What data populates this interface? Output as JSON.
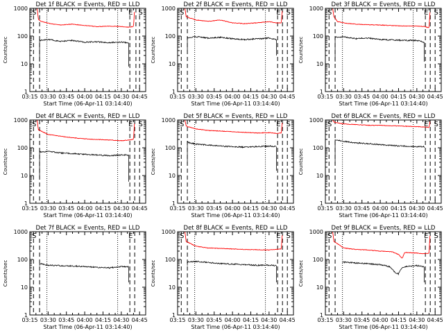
{
  "chart_data": {
    "type": "line",
    "scale": "log",
    "ylim": [
      1,
      1000
    ],
    "xlim_minutes": [
      "03:15",
      "04:50"
    ],
    "xticks": [
      "03:15",
      "03:30",
      "03:45",
      "04:00",
      "04:15",
      "04:30",
      "04:45"
    ],
    "yticks": [
      "1",
      "10",
      "100",
      "1000"
    ],
    "xlabel": "Start Time (06-Apr-11 03:14:40)",
    "ylabel": "Counts/sec",
    "marker_labels": {
      "start": "S",
      "end": "E"
    },
    "legend_text": "BLACK = Events, RED = LLD",
    "colors": {
      "events": "#000000",
      "lld": "#ff0000"
    },
    "panels": [
      {
        "title": "Det 1f BLACK = Events, RED = LLD",
        "dashed": [
          "03:18",
          "03:23",
          "04:37",
          "04:42",
          "04:45"
        ],
        "dotted": [
          "03:29",
          "04:27"
        ],
        "S_at": "03:15",
        "E_at": "04:37",
        "E2_at": "04:44",
        "lld": {
          "start": "03:21",
          "end": "04:42",
          "points": [
            [
              "03:21",
              1000
            ],
            [
              "03:22",
              400
            ],
            [
              "03:24",
              340
            ],
            [
              "03:30",
              290
            ],
            [
              "03:40",
              250
            ],
            [
              "03:50",
              270
            ],
            [
              "04:00",
              240
            ],
            [
              "04:10",
              220
            ],
            [
              "04:20",
              230
            ],
            [
              "04:30",
              220
            ],
            [
              "04:36",
              210
            ],
            [
              "04:40",
              220
            ],
            [
              "04:41",
              1000
            ]
          ]
        },
        "events": {
          "start": "03:23",
          "end": "04:37",
          "drop_start": 12,
          "drop_end": 8,
          "points": [
            [
              "03:23",
              70
            ],
            [
              "03:30",
              75
            ],
            [
              "03:40",
              65
            ],
            [
              "03:50",
              70
            ],
            [
              "04:00",
              60
            ],
            [
              "04:10",
              62
            ],
            [
              "04:20",
              58
            ],
            [
              "04:30",
              60
            ],
            [
              "04:36",
              58
            ]
          ]
        }
      },
      {
        "title": "Det 2f BLACK = Events, RED = LLD",
        "dashed": [
          "03:18",
          "03:23",
          "04:37",
          "04:41",
          "04:45"
        ],
        "dotted": [
          "03:29",
          "04:27"
        ],
        "S_at": "03:15",
        "E_at": "04:37",
        "E2_at": "04:44",
        "lld": {
          "start": "03:21",
          "end": "04:42",
          "points": [
            [
              "03:21",
              1000
            ],
            [
              "03:22",
              500
            ],
            [
              "03:30",
              380
            ],
            [
              "03:40",
              340
            ],
            [
              "03:50",
              380
            ],
            [
              "04:00",
              300
            ],
            [
              "04:10",
              280
            ],
            [
              "04:20",
              300
            ],
            [
              "04:30",
              330
            ],
            [
              "04:36",
              300
            ],
            [
              "04:40",
              300
            ],
            [
              "04:41",
              1000
            ]
          ]
        },
        "events": {
          "start": "03:23",
          "end": "04:37",
          "drop_start": 30,
          "drop_end": 20,
          "points": [
            [
              "03:23",
              85
            ],
            [
              "03:30",
              95
            ],
            [
              "03:40",
              85
            ],
            [
              "03:50",
              90
            ],
            [
              "04:00",
              80
            ],
            [
              "04:10",
              75
            ],
            [
              "04:20",
              80
            ],
            [
              "04:30",
              85
            ],
            [
              "04:36",
              75
            ]
          ]
        }
      },
      {
        "title": "Det 3f BLACK = Events, RED = LLD",
        "dashed": [
          "03:18",
          "03:23",
          "04:37",
          "04:41",
          "04:45"
        ],
        "dotted": [
          "03:29",
          "04:27"
        ],
        "S_at": "03:15",
        "E_at": "04:37",
        "E2_at": "04:44",
        "lld": {
          "start": "03:21",
          "end": "04:42",
          "points": [
            [
              "03:21",
              1000
            ],
            [
              "03:22",
              500
            ],
            [
              "03:25",
              330
            ],
            [
              "03:35",
              280
            ],
            [
              "03:45",
              260
            ],
            [
              "04:00",
              250
            ],
            [
              "04:10",
              240
            ],
            [
              "04:20",
              230
            ],
            [
              "04:30",
              230
            ],
            [
              "04:36",
              220
            ],
            [
              "04:40",
              200
            ],
            [
              "04:41",
              1000
            ]
          ]
        },
        "events": {
          "start": "03:23",
          "end": "04:37",
          "drop_start": 12,
          "drop_end": 12,
          "points": [
            [
              "03:23",
              90
            ],
            [
              "03:30",
              95
            ],
            [
              "03:40",
              80
            ],
            [
              "03:50",
              85
            ],
            [
              "04:00",
              75
            ],
            [
              "04:10",
              72
            ],
            [
              "04:20",
              70
            ],
            [
              "04:30",
              70
            ],
            [
              "04:36",
              60
            ]
          ]
        }
      },
      {
        "title": "Det 4f BLACK = Events, RED = LLD",
        "dashed": [
          "03:18",
          "03:23",
          "04:37",
          "04:41",
          "04:45"
        ],
        "dotted": [
          "03:29",
          "04:27"
        ],
        "S_at": "03:15",
        "E_at": "04:37",
        "E2_at": "04:44",
        "lld": {
          "start": "03:21",
          "end": "04:42",
          "points": [
            [
              "03:21",
              1000
            ],
            [
              "03:22",
              450
            ],
            [
              "03:30",
              300
            ],
            [
              "03:40",
              260
            ],
            [
              "03:50",
              230
            ],
            [
              "04:00",
              210
            ],
            [
              "04:10",
              200
            ],
            [
              "04:20",
              190
            ],
            [
              "04:30",
              180
            ],
            [
              "04:36",
              190
            ],
            [
              "04:40",
              200
            ],
            [
              "04:41",
              1000
            ]
          ]
        },
        "events": {
          "start": "03:23",
          "end": "04:37",
          "drop_start": 8,
          "drop_end": 6,
          "points": [
            [
              "03:23",
              70
            ],
            [
              "03:30",
              75
            ],
            [
              "03:40",
              65
            ],
            [
              "03:50",
              62
            ],
            [
              "04:00",
              58
            ],
            [
              "04:10",
              55
            ],
            [
              "04:20",
              52
            ],
            [
              "04:30",
              55
            ],
            [
              "04:36",
              55
            ]
          ]
        }
      },
      {
        "title": "Det 5f BLACK = Events, RED = LLD",
        "dashed": [
          "03:18",
          "03:23",
          "04:37",
          "04:41",
          "04:45"
        ],
        "dotted": [
          "03:29",
          "04:27"
        ],
        "S_at": "03:15",
        "E_at": "04:37",
        "E2_at": "04:44",
        "lld": {
          "start": "03:21",
          "end": "04:42",
          "points": [
            [
              "03:21",
              1000
            ],
            [
              "03:22",
              600
            ],
            [
              "03:30",
              480
            ],
            [
              "03:40",
              420
            ],
            [
              "03:50",
              400
            ],
            [
              "04:00",
              380
            ],
            [
              "04:10",
              360
            ],
            [
              "04:20",
              340
            ],
            [
              "04:30",
              350
            ],
            [
              "04:36",
              330
            ],
            [
              "04:40",
              340
            ],
            [
              "04:41",
              1000
            ]
          ]
        },
        "events": {
          "start": "03:23",
          "end": "04:37",
          "drop_start": 25,
          "drop_end": 15,
          "points": [
            [
              "03:23",
              160
            ],
            [
              "03:25",
              150
            ],
            [
              "03:30",
              135
            ],
            [
              "03:40",
              125
            ],
            [
              "03:50",
              115
            ],
            [
              "04:00",
              110
            ],
            [
              "04:10",
              105
            ],
            [
              "04:20",
              110
            ],
            [
              "04:30",
              115
            ],
            [
              "04:36",
              110
            ]
          ]
        }
      },
      {
        "title": "Det 6f BLACK = Events, RED = LLD",
        "dashed": [
          "03:18",
          "03:23",
          "04:37",
          "04:41",
          "04:45"
        ],
        "dotted": [
          "03:29",
          "04:27"
        ],
        "S_at": "03:15",
        "E_at": "04:37",
        "E2_at": "04:44",
        "lld": {
          "start": "03:21",
          "end": "04:42",
          "points": [
            [
              "03:21",
              1000
            ],
            [
              "03:22",
              850
            ],
            [
              "03:30",
              720
            ],
            [
              "03:40",
              680
            ],
            [
              "03:50",
              650
            ],
            [
              "04:00",
              640
            ],
            [
              "04:10",
              620
            ],
            [
              "04:20",
              600
            ],
            [
              "04:30",
              580
            ],
            [
              "04:36",
              560
            ],
            [
              "04:40",
              540
            ],
            [
              "04:41",
              1000
            ]
          ]
        },
        "events": {
          "start": "03:23",
          "end": "04:37",
          "drop_start": 25,
          "drop_end": 100,
          "points": [
            [
              "03:23",
              200
            ],
            [
              "03:25",
              185
            ],
            [
              "03:30",
              170
            ],
            [
              "03:40",
              150
            ],
            [
              "03:50",
              140
            ],
            [
              "04:00",
              130
            ],
            [
              "04:10",
              120
            ],
            [
              "04:20",
              115
            ],
            [
              "04:30",
              110
            ],
            [
              "04:36",
              110
            ]
          ]
        }
      },
      {
        "title": "Det 7f BLACK = Events, RED = LLD",
        "dashed": [
          "03:18",
          "03:23",
          "04:37",
          "04:41"
        ],
        "dotted": [
          "03:29",
          "04:27"
        ],
        "S_at": "03:15",
        "E_at": "04:37",
        "E2_at": "",
        "lld": null,
        "events": {
          "start": "03:23",
          "end": "04:37",
          "drop_start": 60,
          "drop_end": 15,
          "points": [
            [
              "03:23",
              70
            ],
            [
              "03:30",
              62
            ],
            [
              "03:40",
              60
            ],
            [
              "03:50",
              58
            ],
            [
              "04:00",
              56
            ],
            [
              "04:10",
              52
            ],
            [
              "04:20",
              50
            ],
            [
              "04:30",
              55
            ],
            [
              "04:36",
              55
            ]
          ]
        }
      },
      {
        "title": "Det 8f BLACK = Events, RED = LLD",
        "dashed": [
          "03:18",
          "03:23",
          "04:37",
          "04:41",
          "04:45"
        ],
        "dotted": [
          "03:29",
          "04:27"
        ],
        "S_at": "03:15",
        "E_at": "04:37",
        "E2_at": "04:44",
        "lld": {
          "start": "03:21",
          "end": "04:42",
          "points": [
            [
              "03:21",
              1000
            ],
            [
              "03:22",
              450
            ],
            [
              "03:30",
              300
            ],
            [
              "03:40",
              260
            ],
            [
              "03:50",
              250
            ],
            [
              "04:00",
              240
            ],
            [
              "04:10",
              230
            ],
            [
              "04:20",
              225
            ],
            [
              "04:30",
              220
            ],
            [
              "04:36",
              230
            ],
            [
              "04:40",
              240
            ],
            [
              "04:41",
              1000
            ]
          ]
        },
        "events": {
          "start": "03:23",
          "end": "04:37",
          "drop_start": 60,
          "drop_end": 15,
          "points": [
            [
              "03:23",
              80
            ],
            [
              "03:30",
              85
            ],
            [
              "03:40",
              78
            ],
            [
              "03:50",
              72
            ],
            [
              "04:00",
              68
            ],
            [
              "04:10",
              65
            ],
            [
              "04:20",
              62
            ],
            [
              "04:30",
              62
            ],
            [
              "04:36",
              60
            ]
          ]
        }
      },
      {
        "title": "Det 9f BLACK = Events, RED = LLD",
        "dashed": [
          "03:18",
          "03:23",
          "04:37",
          "04:41",
          "04:45"
        ],
        "dotted": [
          "03:29",
          "04:27"
        ],
        "S_at": "03:15",
        "E_at": "04:37",
        "E2_at": "04:44",
        "lld": {
          "start": "03:21",
          "end": "04:42",
          "points": [
            [
              "03:21",
              1000
            ],
            [
              "03:22",
              450
            ],
            [
              "03:30",
              260
            ],
            [
              "03:40",
              230
            ],
            [
              "03:50",
              220
            ],
            [
              "04:00",
              200
            ],
            [
              "04:10",
              190
            ],
            [
              "04:15",
              150
            ],
            [
              "04:18",
              110
            ],
            [
              "04:20",
              180
            ],
            [
              "04:30",
              170
            ],
            [
              "04:36",
              160
            ],
            [
              "04:40",
              170
            ],
            [
              "04:41",
              1000
            ]
          ]
        },
        "events": {
          "start": "03:29",
          "end": "04:37",
          "drop_start": 0,
          "drop_end": 15,
          "points": [
            [
              "03:29",
              80
            ],
            [
              "03:40",
              75
            ],
            [
              "03:50",
              70
            ],
            [
              "04:00",
              65
            ],
            [
              "04:08",
              55
            ],
            [
              "04:12",
              35
            ],
            [
              "04:15",
              30
            ],
            [
              "04:17",
              45
            ],
            [
              "04:20",
              55
            ],
            [
              "04:30",
              60
            ],
            [
              "04:36",
              55
            ]
          ]
        }
      }
    ]
  }
}
